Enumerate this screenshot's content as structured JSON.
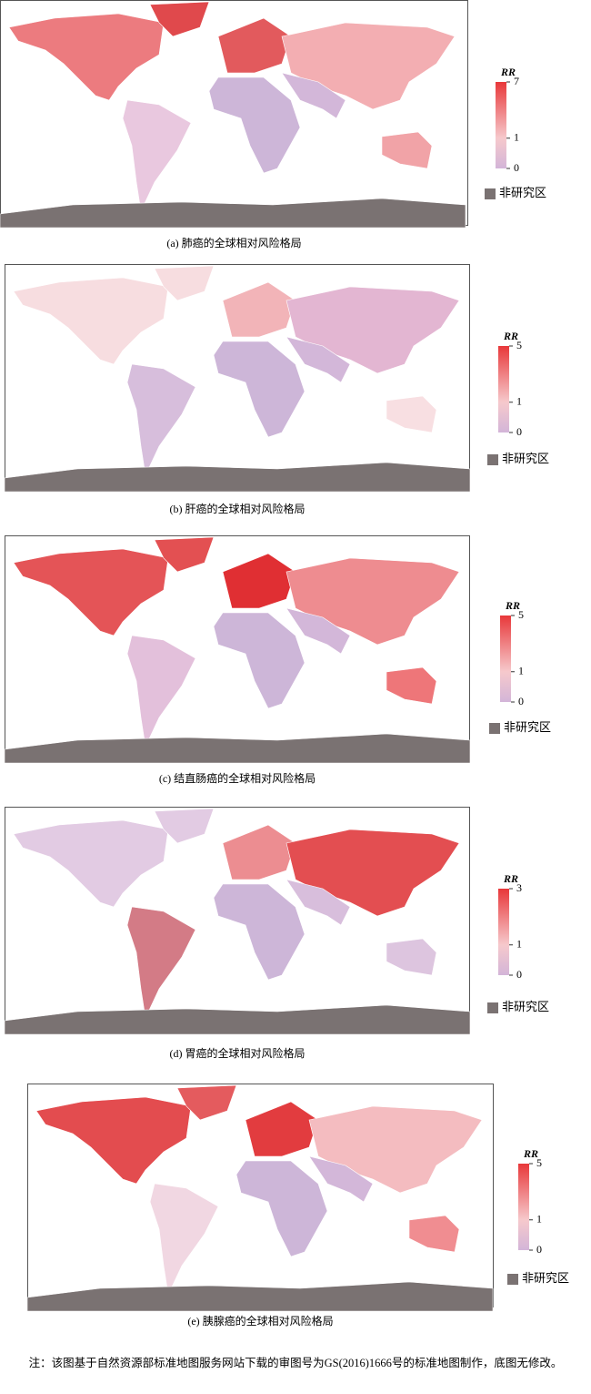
{
  "panels": [
    {
      "caption": "(a) 肺癌的全球相对风险格局",
      "legend": {
        "title": "RR",
        "ticks": [
          7,
          1,
          0
        ]
      }
    },
    {
      "caption": "(b) 肝癌的全球相对风险格局",
      "legend": {
        "title": "RR",
        "ticks": [
          5,
          1,
          0
        ]
      }
    },
    {
      "caption": "(c) 结直肠癌的全球相对风险格局",
      "legend": {
        "title": "RR",
        "ticks": [
          5,
          1,
          0
        ]
      }
    },
    {
      "caption": "(d) 胃癌的全球相对风险格局",
      "legend": {
        "title": "RR",
        "ticks": [
          3,
          1,
          0
        ]
      }
    },
    {
      "caption": "(e) 胰腺癌的全球相对风险格局",
      "legend": {
        "title": "RR",
        "ticks": [
          5,
          1,
          0
        ]
      }
    }
  ],
  "no_data_label": "非研究区",
  "note": "注：该图基于自然资源部标准地图服务网站下载的审图号为GS(2016)1666号的标准地图制作，底图无修改。"
}
